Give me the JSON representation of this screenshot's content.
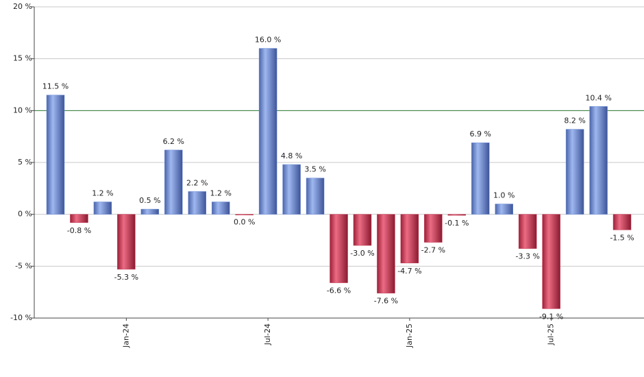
{
  "chart_data": {
    "type": "bar",
    "categories": [
      null,
      null,
      null,
      "Jan-24",
      null,
      null,
      null,
      null,
      null,
      "Jul-24",
      null,
      null,
      null,
      null,
      null,
      "Jan-25",
      null,
      null,
      null,
      null,
      null,
      "Jul-25",
      null,
      null,
      null
    ],
    "values": [
      11.5,
      -0.8,
      1.2,
      -5.3,
      0.5,
      6.2,
      2.2,
      1.2,
      0.0,
      16.0,
      4.8,
      3.5,
      -6.6,
      -3.0,
      -7.6,
      -4.7,
      -2.7,
      -0.1,
      6.9,
      1.0,
      -3.3,
      -9.1,
      8.2,
      10.4,
      -1.5
    ],
    "value_labels": [
      "11.5 %",
      "-0.8 %",
      "1.2 %",
      "-5.3 %",
      "0.5 %",
      "6.2 %",
      "2.2 %",
      "1.2 %",
      "0.0 %",
      "16.0 %",
      "4.8 %",
      "3.5 %",
      "-6.6 %",
      "-3.0 %",
      "-7.6 %",
      "-4.7 %",
      "-2.7 %",
      "-0.1 %",
      "6.9 %",
      "1.0 %",
      "-3.3 %",
      "-9.1 %",
      "8.2 %",
      "10.4 %",
      "-1.5 %"
    ],
    "positive_color": "#7090d8",
    "negative_color": "#c83a55",
    "ylim": [
      -10,
      20
    ],
    "yticks": [
      {
        "value": -10,
        "label": "-10 %"
      },
      {
        "value": -5,
        "label": "-5 %"
      },
      {
        "value": 0,
        "label": "0 %"
      },
      {
        "value": 5,
        "label": "5 %"
      },
      {
        "value": 10,
        "label": "10 %"
      },
      {
        "value": 15,
        "label": "15 %"
      },
      {
        "value": 20,
        "label": "20 %"
      }
    ],
    "reference_line": {
      "value": 10,
      "color": "#2e7d32"
    },
    "grid": true
  }
}
